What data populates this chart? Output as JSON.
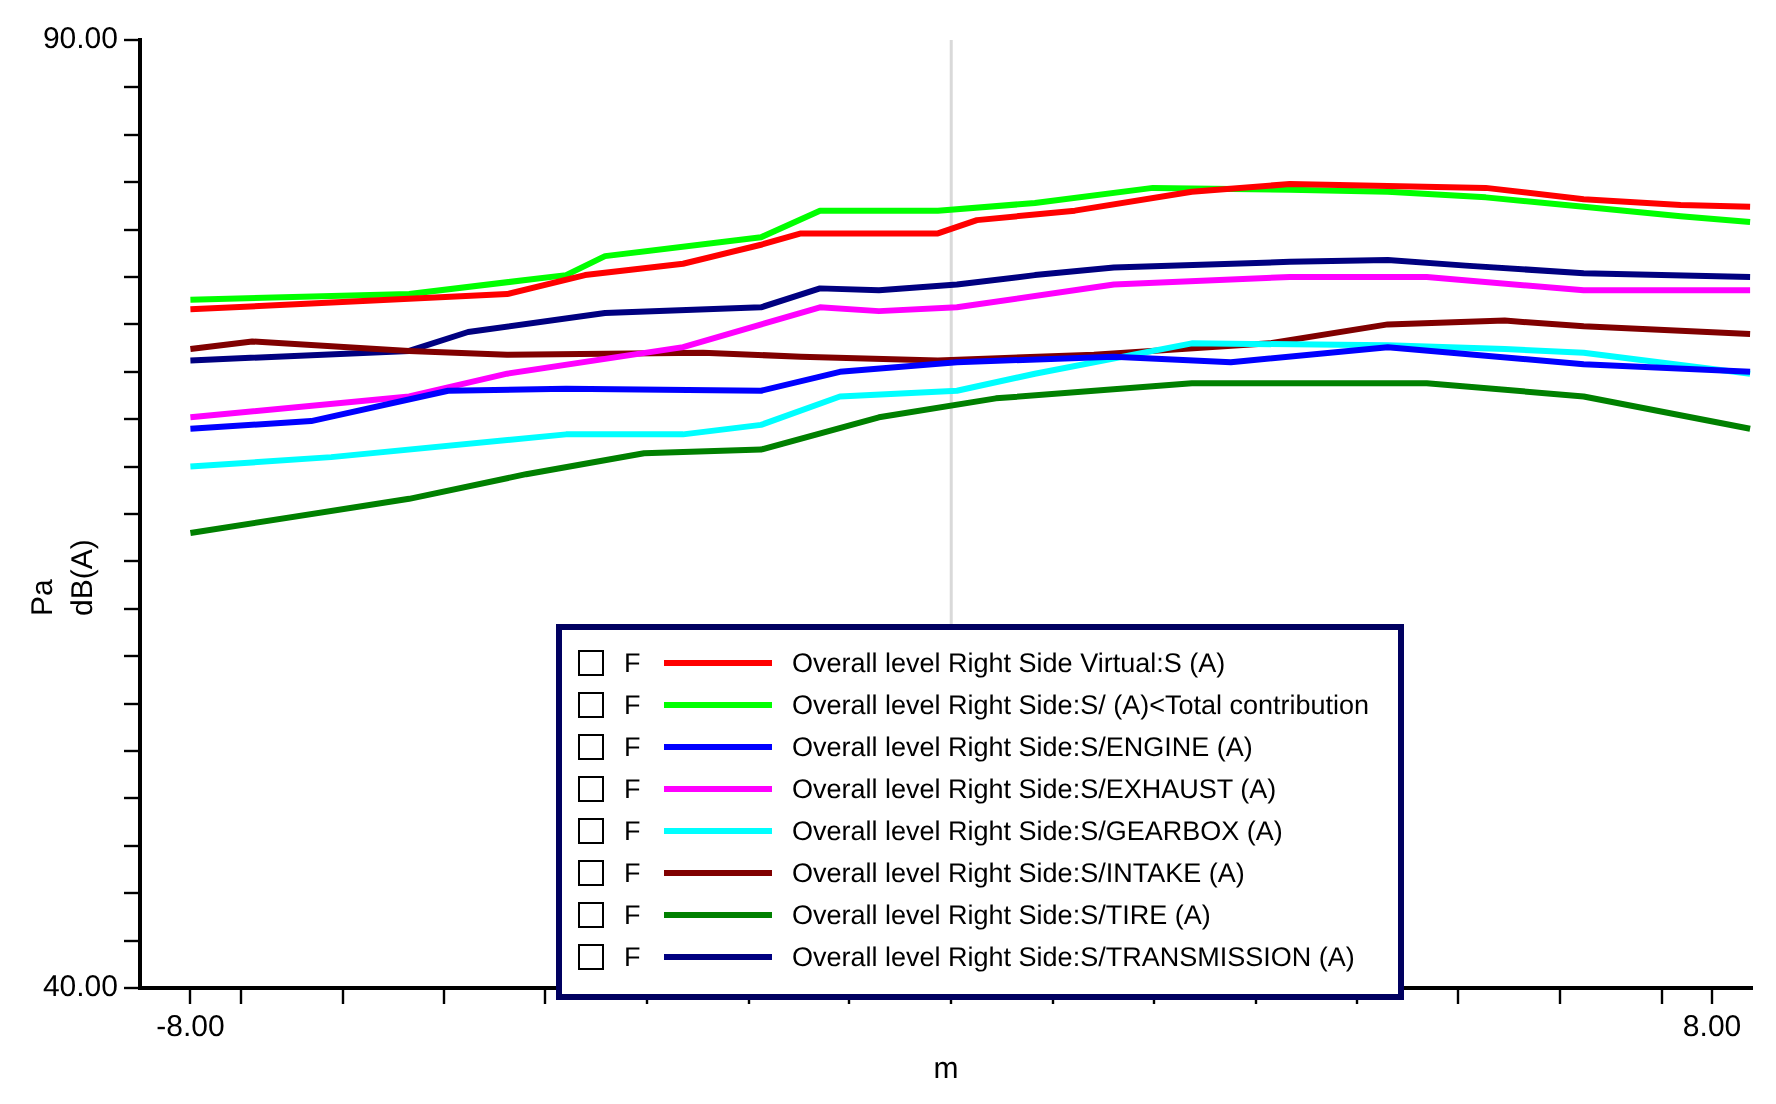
{
  "chart_data": {
    "type": "line",
    "xlabel": "m",
    "ylabel": "Pa\ndB(A)",
    "xlim": [
      -8.53,
      8.42
    ],
    "ylim": [
      40,
      90
    ],
    "xticks": [
      {
        "value": -8,
        "label": "-8.00"
      },
      {
        "value": -7.47,
        "label": null
      },
      {
        "value": -6.4,
        "label": null
      },
      {
        "value": -5.33,
        "label": null
      },
      {
        "value": -4.27,
        "label": null
      },
      {
        "value": -3.2,
        "label": null
      },
      {
        "value": -2.13,
        "label": null
      },
      {
        "value": -1.07,
        "label": null
      },
      {
        "value": 0,
        "label": null
      },
      {
        "value": 1.07,
        "label": null
      },
      {
        "value": 2.13,
        "label": null
      },
      {
        "value": 3.2,
        "label": null
      },
      {
        "value": 4.27,
        "label": null
      },
      {
        "value": 5.33,
        "label": null
      },
      {
        "value": 6.4,
        "label": null
      },
      {
        "value": 7.47,
        "label": null
      },
      {
        "value": 8,
        "label": "8.00"
      }
    ],
    "yticks": [
      {
        "value": 40,
        "label": "40.00"
      },
      {
        "value": 42.5,
        "label": null
      },
      {
        "value": 45,
        "label": null
      },
      {
        "value": 47.5,
        "label": null
      },
      {
        "value": 50,
        "label": null
      },
      {
        "value": 52.5,
        "label": null
      },
      {
        "value": 55,
        "label": null
      },
      {
        "value": 57.5,
        "label": null
      },
      {
        "value": 60,
        "label": null
      },
      {
        "value": 62.5,
        "label": null
      },
      {
        "value": 65,
        "label": null
      },
      {
        "value": 67.5,
        "label": null
      },
      {
        "value": 70,
        "label": null
      },
      {
        "value": 72.5,
        "label": null
      },
      {
        "value": 75,
        "label": null
      },
      {
        "value": 77.5,
        "label": null
      },
      {
        "value": 80,
        "label": null
      },
      {
        "value": 82.5,
        "label": null
      },
      {
        "value": 85,
        "label": null
      },
      {
        "value": 87.5,
        "label": null
      },
      {
        "value": 90,
        "label": "90.00"
      }
    ],
    "legend": "bottom",
    "line_style": "solid",
    "marker": "none",
    "ref_lines": [
      {
        "axis": "x",
        "value": 0,
        "label": null,
        "color": "#d9d9d9"
      }
    ],
    "annotations": [
      "F",
      "F",
      "F",
      "F",
      "F",
      "F",
      "F",
      "F"
    ],
    "series": [
      {
        "name": "Overall level Right Side Virtual:S (A)",
        "color": "#ff0000",
        "x": [
          -8,
          -6.73,
          -4.67,
          -3.85,
          -2.82,
          -2,
          -1.58,
          -0.14,
          0.27,
          1.3,
          2.53,
          3.56,
          4.59,
          5.62,
          6.65,
          7.67,
          8.4
        ],
        "values": [
          75.8,
          76.1,
          76.6,
          77.6,
          78.2,
          79.2,
          79.8,
          79.8,
          80.5,
          81,
          82,
          82.4,
          82.3,
          82.2,
          81.6,
          81.3,
          81.2
        ]
      },
      {
        "name": "Overall level Right Side:S/ (A)<Total contribution",
        "color": "#00ff00",
        "x": [
          -8,
          -5.7,
          -4.05,
          -3.64,
          -2,
          -1.38,
          -0.14,
          0.88,
          2.12,
          3.56,
          4.59,
          5.62,
          6.65,
          7.67,
          8.4
        ],
        "values": [
          76.3,
          76.6,
          77.6,
          78.6,
          79.6,
          81,
          81,
          81.4,
          82.2,
          82.1,
          82,
          81.7,
          81.2,
          80.7,
          80.4
        ]
      },
      {
        "name": "Overall level Right Side:S/ENGINE (A)",
        "color": "#0000ff",
        "x": [
          -8,
          -6.73,
          -5.29,
          -4.05,
          -2,
          -1.17,
          0.06,
          1.71,
          2.94,
          4.59,
          6.65,
          8.4
        ],
        "values": [
          69.5,
          69.9,
          71.5,
          71.6,
          71.5,
          72.5,
          73,
          73.3,
          73,
          73.8,
          72.9,
          72.5
        ]
      },
      {
        "name": "Overall level Right Side:S/EXHAUST (A)",
        "color": "#ff00ff",
        "x": [
          -8,
          -5.7,
          -4.67,
          -2.82,
          -1.38,
          -0.76,
          0.06,
          1.71,
          3.56,
          5,
          6.65,
          8.4
        ],
        "values": [
          70.1,
          71.2,
          72.4,
          73.8,
          75.9,
          75.7,
          75.9,
          77.1,
          77.5,
          77.5,
          76.8,
          76.8
        ]
      },
      {
        "name": "Overall level Right Side:S/GEARBOX (A)",
        "color": "#00ffff",
        "x": [
          -8,
          -6.52,
          -4.05,
          -2.82,
          -2,
          -1.17,
          0.06,
          0.88,
          2.53,
          4.59,
          5.82,
          6.65,
          8.4
        ],
        "values": [
          67.5,
          68,
          69.2,
          69.2,
          69.7,
          71.2,
          71.5,
          72.4,
          74,
          73.9,
          73.7,
          73.5,
          72.4
        ]
      },
      {
        "name": "Overall level Right Side:S/INTAKE (A)",
        "color": "#800000",
        "x": [
          -8,
          -7.35,
          -5.7,
          -4.67,
          -2.61,
          -1.58,
          -0.14,
          1.5,
          3.35,
          4.59,
          5.82,
          6.65,
          8.4
        ],
        "values": [
          73.7,
          74.1,
          73.6,
          73.4,
          73.5,
          73.3,
          73.1,
          73.4,
          74,
          75,
          75.2,
          74.9,
          74.5
        ]
      },
      {
        "name": "Overall level Right Side:S/TIRE (A)",
        "color": "#008000",
        "x": [
          -8,
          -5.7,
          -4.47,
          -3.23,
          -2,
          -0.76,
          0.47,
          2.53,
          5,
          6.65,
          8.4
        ],
        "values": [
          64,
          65.8,
          67.1,
          68.2,
          68.4,
          70.1,
          71.1,
          71.9,
          71.9,
          71.2,
          69.5
        ]
      },
      {
        "name": "Overall level Right Side:S/TRANSMISSION (A)",
        "color": "#000080",
        "x": [
          -8,
          -5.7,
          -5.08,
          -3.64,
          -2,
          -1.38,
          -0.76,
          0.06,
          0.88,
          1.71,
          3.56,
          4.59,
          5.41,
          6.65,
          8.4
        ],
        "values": [
          73.1,
          73.6,
          74.6,
          75.6,
          75.9,
          76.9,
          76.8,
          77.1,
          77.6,
          78,
          78.3,
          78.4,
          78.1,
          77.7,
          77.5
        ]
      }
    ]
  }
}
